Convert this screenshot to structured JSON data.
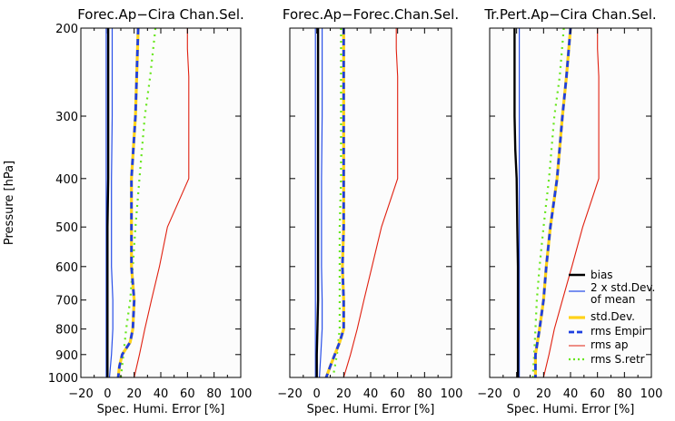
{
  "figure": {
    "ylabel": "Pressure [hPa]",
    "xlabel": "Spec. Humi. Error [%]"
  },
  "legend": [
    {
      "label": "bias",
      "color": "#000000",
      "style": "solid-thick"
    },
    {
      "label": "2 x std.Dev. of mean",
      "label_lines": [
        "2 x std.Dev.",
        "of mean"
      ],
      "color": "#2a50e8",
      "style": "solid-thin"
    },
    {
      "label": "std.Dev.",
      "color": "#ffd21a",
      "style": "solid-thick"
    },
    {
      "label": "rms Empir",
      "color": "#1e3fe0",
      "style": "dashed-thick"
    },
    {
      "label": "rms ap",
      "color": "#e02010",
      "style": "solid-thin"
    },
    {
      "label": "rms S.retr",
      "color": "#66e61a",
      "style": "dotted"
    }
  ],
  "chart_data": [
    {
      "type": "line",
      "title": "Forec.Ap−Cira Chan.Sel.",
      "xlabel": "Spec. Humi. Error [%]",
      "ylabel": "Pressure [hPa]",
      "xlim": [
        -20,
        100
      ],
      "ylim": [
        1000,
        200
      ],
      "xticks": [
        -20,
        0,
        20,
        40,
        60,
        80,
        100
      ],
      "yticks": [
        200,
        300,
        400,
        500,
        600,
        700,
        800,
        900,
        1000
      ],
      "series": [
        {
          "name": "bias",
          "points": [
            [
              0.5,
              200
            ],
            [
              0.5,
              400
            ],
            [
              0,
              500
            ],
            [
              0,
              600
            ],
            [
              0,
              700
            ],
            [
              0,
              800
            ],
            [
              0,
              900
            ],
            [
              0,
              1000
            ]
          ]
        },
        {
          "name": "2 x std.Dev. of mean",
          "points": [
            [
              3.5,
              200
            ],
            [
              3.5,
              300
            ],
            [
              3,
              400
            ],
            [
              3,
              500
            ],
            [
              3,
              600
            ],
            [
              4,
              700
            ],
            [
              4,
              800
            ],
            [
              3,
              900
            ],
            [
              1.5,
              1000
            ]
          ]
        },
        {
          "name": "2 x std.Dev. of mean",
          "points": [
            [
              -1,
              200
            ],
            [
              -1,
              300
            ],
            [
              -1,
              400
            ],
            [
              -1,
              500
            ],
            [
              -1,
              600
            ],
            [
              -1,
              700
            ],
            [
              -1,
              800
            ],
            [
              -1,
              900
            ],
            [
              -1,
              1000
            ]
          ]
        },
        {
          "name": "std.Dev.",
          "points": [
            [
              23,
              200
            ],
            [
              21,
              300
            ],
            [
              18,
              400
            ],
            [
              18,
              500
            ],
            [
              18,
              600
            ],
            [
              20,
              700
            ],
            [
              19,
              800
            ],
            [
              17,
              850
            ],
            [
              11,
              900
            ],
            [
              9,
              950
            ],
            [
              8,
              1000
            ]
          ]
        },
        {
          "name": "rms Empir",
          "points": [
            [
              23,
              200
            ],
            [
              21,
              300
            ],
            [
              18,
              400
            ],
            [
              18,
              500
            ],
            [
              18,
              600
            ],
            [
              20,
              700
            ],
            [
              19,
              800
            ],
            [
              17,
              850
            ],
            [
              11,
              900
            ],
            [
              9,
              950
            ],
            [
              8,
              1000
            ]
          ]
        },
        {
          "name": "rms ap",
          "points": [
            [
              60,
              200
            ],
            [
              60,
              220
            ],
            [
              61,
              250
            ],
            [
              61,
              400
            ],
            [
              45,
              500
            ],
            [
              39,
              600
            ],
            [
              33,
              700
            ],
            [
              28,
              800
            ],
            [
              24,
              900
            ],
            [
              20,
              1000
            ]
          ]
        },
        {
          "name": "rms S.retr",
          "points": [
            [
              36,
              200
            ],
            [
              32,
              250
            ],
            [
              28,
              300
            ],
            [
              24,
              400
            ],
            [
              21,
              500
            ],
            [
              19,
              600
            ],
            [
              17,
              700
            ],
            [
              14,
              800
            ],
            [
              12,
              900
            ],
            [
              10,
              1000
            ]
          ]
        }
      ]
    },
    {
      "type": "line",
      "title": "Forec.Ap−Forec.Chan.Sel.",
      "xlabel": "Spec. Humi. Error [%]",
      "xlim": [
        -20,
        100
      ],
      "ylim": [
        1000,
        200
      ],
      "xticks": [
        -20,
        0,
        20,
        40,
        60,
        80,
        100
      ],
      "yticks": [
        200,
        300,
        400,
        500,
        600,
        700,
        800,
        900,
        1000
      ],
      "series": [
        {
          "name": "bias",
          "points": [
            [
              1,
              200
            ],
            [
              1,
              400
            ],
            [
              1,
              500
            ],
            [
              1,
              700
            ],
            [
              0.5,
              800
            ],
            [
              0,
              900
            ],
            [
              0,
              1000
            ]
          ]
        },
        {
          "name": "2 x std.Dev. of mean",
          "points": [
            [
              4,
              200
            ],
            [
              4,
              300
            ],
            [
              3.5,
              400
            ],
            [
              3.5,
              500
            ],
            [
              3.5,
              600
            ],
            [
              4,
              700
            ],
            [
              4,
              800
            ],
            [
              3,
              900
            ],
            [
              2,
              1000
            ]
          ]
        },
        {
          "name": "2 x std.Dev. of mean",
          "points": [
            [
              -1,
              200
            ],
            [
              -1,
              1000
            ]
          ]
        },
        {
          "name": "std.Dev.",
          "points": [
            [
              20,
              200
            ],
            [
              20,
              400
            ],
            [
              20,
              500
            ],
            [
              19,
              600
            ],
            [
              20,
              700
            ],
            [
              20,
              800
            ],
            [
              17,
              850
            ],
            [
              10,
              950
            ],
            [
              7,
              1000
            ]
          ]
        },
        {
          "name": "rms Empir",
          "points": [
            [
              20,
              200
            ],
            [
              20,
              400
            ],
            [
              20,
              500
            ],
            [
              19,
              600
            ],
            [
              20,
              700
            ],
            [
              20,
              800
            ],
            [
              17,
              850
            ],
            [
              10,
              950
            ],
            [
              7,
              1000
            ]
          ]
        },
        {
          "name": "rms ap",
          "points": [
            [
              59,
              200
            ],
            [
              59,
              220
            ],
            [
              60,
              250
            ],
            [
              60,
              400
            ],
            [
              48,
              500
            ],
            [
              41,
              600
            ],
            [
              35,
              700
            ],
            [
              30,
              800
            ],
            [
              25,
              900
            ],
            [
              20,
              1000
            ]
          ]
        },
        {
          "name": "rms S.retr",
          "points": [
            [
              18,
              200
            ],
            [
              18,
              400
            ],
            [
              17,
              500
            ],
            [
              17,
              600
            ],
            [
              17,
              700
            ],
            [
              17,
              800
            ],
            [
              15,
              900
            ],
            [
              12,
              1000
            ]
          ]
        }
      ]
    },
    {
      "type": "line",
      "title": "Tr.Pert.Ap−Cira Chan.Sel.",
      "xlabel": "Spec. Humi. Error [%]",
      "xlim": [
        -20,
        100
      ],
      "ylim": [
        1000,
        200
      ],
      "xticks": [
        -20,
        0,
        20,
        40,
        60,
        80,
        100
      ],
      "yticks": [
        200,
        300,
        400,
        500,
        600,
        700,
        800,
        900,
        1000
      ],
      "series": [
        {
          "name": "bias",
          "points": [
            [
              -1.5,
              200
            ],
            [
              -1.5,
              300
            ],
            [
              -1,
              350
            ],
            [
              0,
              400
            ],
            [
              0.5,
              500
            ],
            [
              1,
              600
            ],
            [
              1,
              700
            ],
            [
              1,
              800
            ],
            [
              1,
              900
            ],
            [
              1,
              1000
            ]
          ]
        },
        {
          "name": "2 x std.Dev. of mean",
          "points": [
            [
              2,
              200
            ],
            [
              2,
              300
            ],
            [
              2,
              400
            ],
            [
              2,
              500
            ],
            [
              2,
              600
            ],
            [
              2,
              700
            ],
            [
              2,
              800
            ],
            [
              2,
              900
            ],
            [
              2,
              1000
            ]
          ]
        },
        {
          "name": "std.Dev.",
          "points": [
            [
              40,
              200
            ],
            [
              37,
              250
            ],
            [
              34,
              300
            ],
            [
              30,
              400
            ],
            [
              25,
              500
            ],
            [
              22,
              600
            ],
            [
              20,
              700
            ],
            [
              17,
              800
            ],
            [
              14,
              900
            ],
            [
              14,
              1000
            ]
          ]
        },
        {
          "name": "rms Empir",
          "points": [
            [
              40,
              200
            ],
            [
              37,
              250
            ],
            [
              34,
              300
            ],
            [
              30,
              400
            ],
            [
              25,
              500
            ],
            [
              22,
              600
            ],
            [
              20,
              700
            ],
            [
              17,
              800
            ],
            [
              14,
              900
            ],
            [
              14,
              1000
            ]
          ]
        },
        {
          "name": "rms ap",
          "points": [
            [
              60,
              200
            ],
            [
              60,
              220
            ],
            [
              61,
              250
            ],
            [
              61,
              400
            ],
            [
              49,
              500
            ],
            [
              41,
              600
            ],
            [
              34,
              700
            ],
            [
              28,
              800
            ],
            [
              24,
              900
            ],
            [
              20,
              1000
            ]
          ]
        },
        {
          "name": "rms S.retr",
          "points": [
            [
              35,
              200
            ],
            [
              32,
              250
            ],
            [
              28,
              300
            ],
            [
              24,
              400
            ],
            [
              20,
              500
            ],
            [
              17,
              600
            ],
            [
              15,
              700
            ],
            [
              14,
              800
            ],
            [
              13,
              900
            ],
            [
              12,
              1000
            ]
          ]
        }
      ]
    }
  ]
}
